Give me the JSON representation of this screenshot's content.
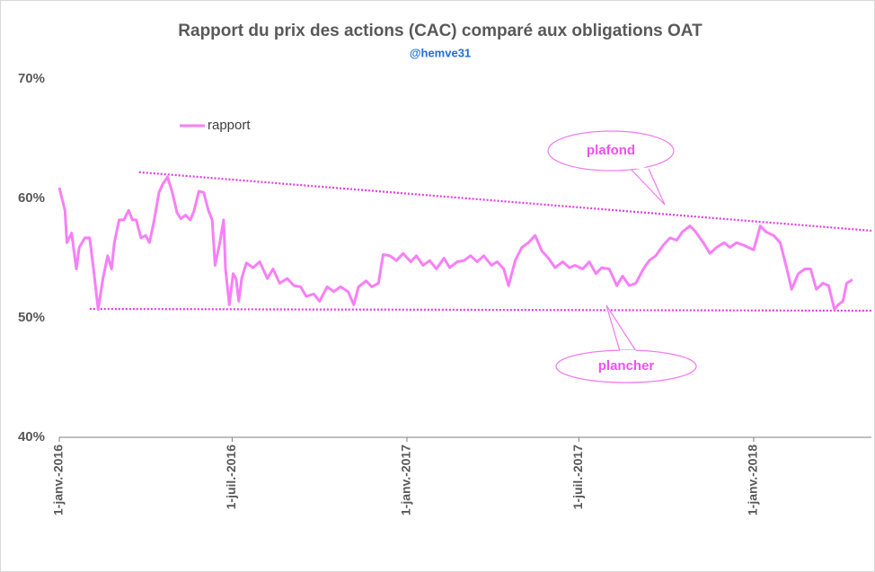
{
  "chart_data": {
    "type": "line",
    "title": "Rapport du prix  des actions  (CAC) comparé aux obligations OAT",
    "subtitle": "@hemve31",
    "legend": "top-left",
    "grid": false,
    "xlim": [
      "2016-01-01",
      "2018-05-05"
    ],
    "xticks": [
      {
        "value": "2016-01-01",
        "label": "1-janv.-2016"
      },
      {
        "value": "2016-07-01",
        "label": "1-juil.-2016"
      },
      {
        "value": "2017-01-01",
        "label": "1-janv.-2017"
      },
      {
        "value": "2017-07-01",
        "label": "1-juil.-2017"
      },
      {
        "value": "2018-01-01",
        "label": "1-janv.-2018"
      }
    ],
    "ylim": [
      40,
      70
    ],
    "yticks": [
      {
        "value": 40,
        "label": "40%"
      },
      {
        "value": 50,
        "label": "50%"
      },
      {
        "value": 60,
        "label": "60%"
      },
      {
        "value": 70,
        "label": "70%"
      }
    ],
    "x": [
      "2016-01-01",
      "2016-01-07",
      "2016-01-09",
      "2016-01-14",
      "2016-01-19",
      "2016-01-22",
      "2016-01-28",
      "2016-02-02",
      "2016-02-06",
      "2016-02-11",
      "2016-02-16",
      "2016-02-21",
      "2016-02-25",
      "2016-02-28",
      "2016-03-04",
      "2016-03-09",
      "2016-03-14",
      "2016-03-18",
      "2016-03-22",
      "2016-03-27",
      "2016-04-01",
      "2016-04-05",
      "2016-04-10",
      "2016-04-15",
      "2016-04-19",
      "2016-04-24",
      "2016-04-29",
      "2016-05-04",
      "2016-05-08",
      "2016-05-13",
      "2016-05-18",
      "2016-05-22",
      "2016-05-27",
      "2016-06-01",
      "2016-06-06",
      "2016-06-10",
      "2016-06-13",
      "2016-06-18",
      "2016-06-22",
      "2016-06-24",
      "2016-06-28",
      "2016-07-02",
      "2016-07-05",
      "2016-07-08",
      "2016-07-11",
      "2016-07-16",
      "2016-07-23",
      "2016-07-30",
      "2016-08-07",
      "2016-08-13",
      "2016-08-20",
      "2016-08-28",
      "2016-09-04",
      "2016-09-11",
      "2016-09-17",
      "2016-09-25",
      "2016-10-01",
      "2016-10-09",
      "2016-10-16",
      "2016-10-23",
      "2016-10-31",
      "2016-11-06",
      "2016-11-11",
      "2016-11-19",
      "2016-11-25",
      "2016-12-02",
      "2016-12-07",
      "2016-12-14",
      "2016-12-21",
      "2016-12-28",
      "2017-01-05",
      "2017-01-11",
      "2017-01-18",
      "2017-01-25",
      "2017-02-01",
      "2017-02-09",
      "2017-02-15",
      "2017-02-23",
      "2017-03-02",
      "2017-03-09",
      "2017-03-16",
      "2017-03-23",
      "2017-03-31",
      "2017-04-06",
      "2017-04-13",
      "2017-04-18",
      "2017-04-25",
      "2017-05-02",
      "2017-05-09",
      "2017-05-16",
      "2017-05-23",
      "2017-05-30",
      "2017-06-06",
      "2017-06-14",
      "2017-06-21",
      "2017-06-27",
      "2017-07-05",
      "2017-07-12",
      "2017-07-19",
      "2017-07-25",
      "2017-08-02",
      "2017-08-10",
      "2017-08-16",
      "2017-08-23",
      "2017-08-30",
      "2017-09-07",
      "2017-09-13",
      "2017-09-20",
      "2017-09-28",
      "2017-10-05",
      "2017-10-12",
      "2017-10-18",
      "2017-10-26",
      "2017-11-01",
      "2017-11-09",
      "2017-11-16",
      "2017-11-23",
      "2017-12-01",
      "2017-12-07",
      "2017-12-14",
      "2017-12-21",
      "2018-01-01",
      "2018-01-08",
      "2018-01-14",
      "2018-01-22",
      "2018-01-29",
      "2018-02-05",
      "2018-02-10",
      "2018-02-17",
      "2018-02-24",
      "2018-03-02",
      "2018-03-08",
      "2018-03-15",
      "2018-03-21",
      "2018-03-27",
      "2018-03-31",
      "2018-04-05",
      "2018-04-09",
      "2018-04-15"
    ],
    "series": [
      {
        "name": "rapport",
        "color": "#f77ff7",
        "values": [
          60.9,
          59.0,
          56.3,
          57.1,
          54.1,
          55.9,
          56.7,
          56.7,
          54.1,
          50.7,
          53.3,
          55.2,
          54.1,
          56.3,
          58.2,
          58.2,
          59.0,
          58.2,
          58.2,
          56.7,
          56.9,
          56.3,
          58.2,
          60.5,
          61.2,
          61.8,
          60.5,
          58.8,
          58.3,
          58.6,
          58.2,
          59.0,
          60.6,
          60.5,
          59.0,
          58.2,
          54.4,
          56.3,
          58.2,
          54.1,
          51.1,
          53.7,
          53.3,
          51.4,
          53.3,
          54.6,
          54.2,
          54.7,
          53.3,
          54.1,
          52.9,
          53.3,
          52.7,
          52.6,
          51.8,
          52.0,
          51.4,
          52.6,
          52.2,
          52.6,
          52.2,
          51.1,
          52.6,
          53.1,
          52.6,
          52.9,
          55.3,
          55.2,
          54.8,
          55.4,
          54.7,
          55.2,
          54.4,
          54.8,
          54.1,
          55.0,
          54.2,
          54.7,
          54.8,
          55.2,
          54.7,
          55.2,
          54.4,
          54.7,
          54.1,
          52.7,
          54.8,
          55.9,
          56.3,
          56.9,
          55.6,
          55.0,
          54.2,
          54.7,
          54.2,
          54.4,
          54.1,
          54.7,
          53.7,
          54.2,
          54.1,
          52.7,
          53.5,
          52.7,
          52.9,
          54.1,
          54.8,
          55.2,
          56.1,
          56.7,
          56.5,
          57.2,
          57.7,
          57.2,
          56.3,
          55.4,
          55.9,
          56.3,
          55.9,
          56.3,
          56.1,
          55.7,
          57.7,
          57.2,
          56.9,
          56.3,
          54.1,
          52.4,
          53.7,
          54.1,
          54.1,
          52.4,
          52.9,
          52.7,
          50.7,
          51.1,
          51.4,
          52.9,
          53.2
        ]
      }
    ],
    "annotations": [
      {
        "text": "plafond",
        "x": [
          "2016-03-25",
          "2018-05-05"
        ],
        "y": [
          62.2,
          57.3
        ]
      },
      {
        "text": "plancher",
        "x": [
          "2016-02-02",
          "2018-05-05"
        ],
        "y": [
          50.75,
          50.6
        ]
      }
    ]
  }
}
